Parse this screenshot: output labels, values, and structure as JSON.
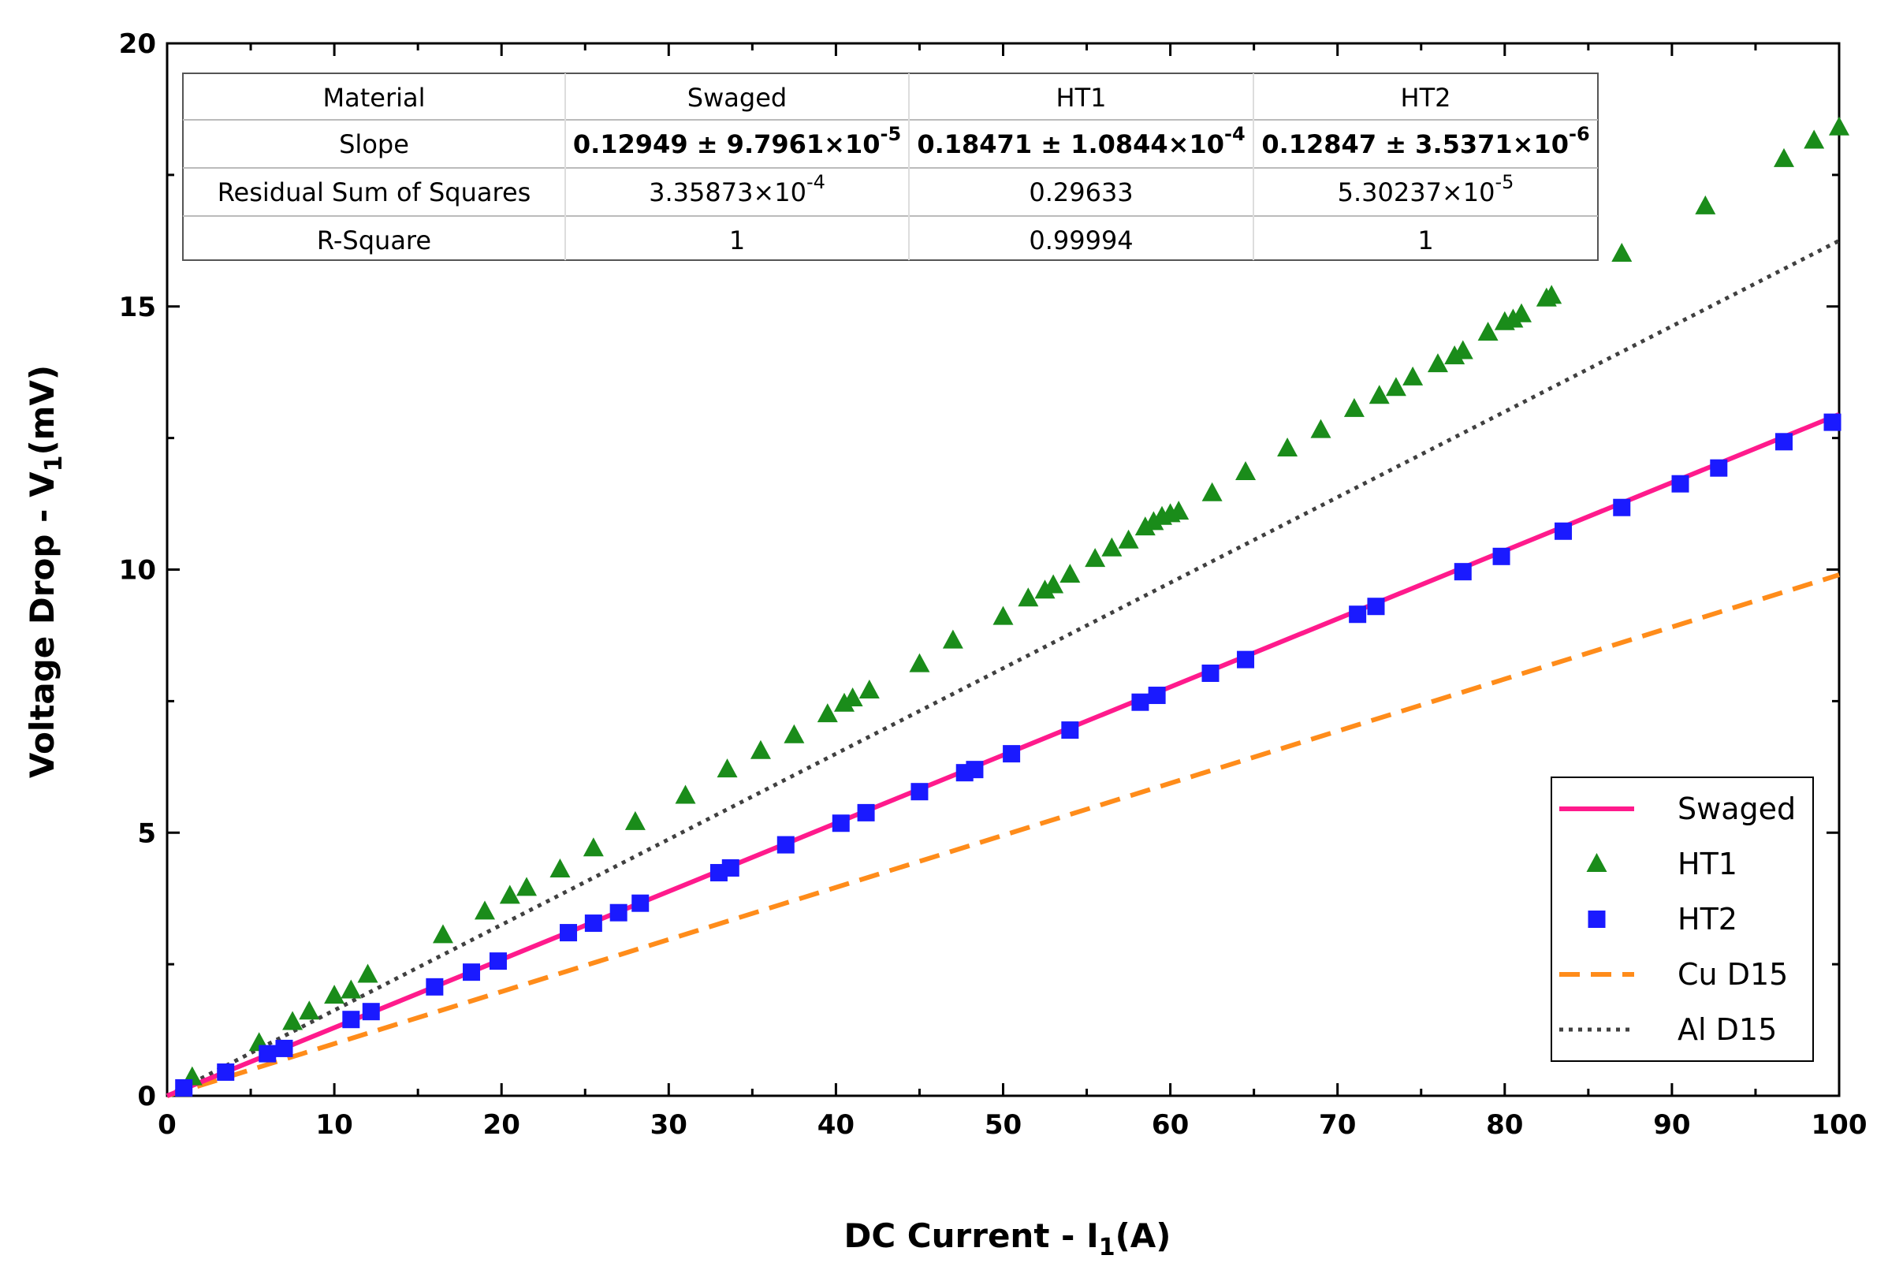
{
  "chart_data": {
    "type": "scatter",
    "xlabel": "DC Current - I",
    "xlabel_sub": "1",
    "xlabel_suffix": "(A)",
    "ylabel": "Voltage Drop - V",
    "ylabel_sub": "1",
    "ylabel_suffix": "(mV)",
    "xlim": [
      0,
      100
    ],
    "ylim": [
      0,
      20
    ],
    "x_ticks": [
      0,
      10,
      20,
      30,
      40,
      50,
      60,
      70,
      80,
      90,
      100
    ],
    "y_ticks": [
      0,
      5,
      10,
      15,
      20
    ],
    "legend_position": "bottom-right",
    "series": [
      {
        "name": "Swaged",
        "kind": "line",
        "style": "solid",
        "color": "#ff1a8c",
        "slope": 0.12949,
        "x": [
          0,
          100
        ]
      },
      {
        "name": "HT1",
        "kind": "marker",
        "marker": "triangle",
        "color": "#1a8c1a",
        "x": [
          1.5,
          5.5,
          7.5,
          8.5,
          10,
          11,
          12,
          16.5,
          19,
          20.5,
          21.5,
          23.5,
          25.5,
          28,
          31,
          33.5,
          35.5,
          37.5,
          39.5,
          40.5,
          41,
          42,
          45,
          47,
          50,
          51.5,
          52.5,
          53,
          54,
          55.5,
          56.5,
          57.5,
          58.5,
          59,
          59.5,
          60,
          60.5,
          62.5,
          64.5,
          67,
          69,
          71,
          72.5,
          73.5,
          74.5,
          76,
          77,
          77.5,
          79,
          80,
          80.5,
          81,
          82.5,
          82.8,
          87,
          92,
          96.7,
          98.5,
          100
        ],
        "y": [
          0.35,
          1.0,
          1.4,
          1.6,
          1.9,
          2.0,
          2.3,
          3.05,
          3.5,
          3.8,
          3.95,
          4.3,
          4.7,
          5.2,
          5.7,
          6.2,
          6.55,
          6.85,
          7.25,
          7.45,
          7.55,
          7.7,
          8.2,
          8.65,
          9.1,
          9.45,
          9.6,
          9.7,
          9.9,
          10.2,
          10.4,
          10.55,
          10.8,
          10.9,
          11.0,
          11.05,
          11.1,
          11.45,
          11.85,
          12.3,
          12.65,
          13.05,
          13.3,
          13.45,
          13.65,
          13.9,
          14.05,
          14.15,
          14.5,
          14.7,
          14.75,
          14.85,
          15.15,
          15.2,
          16.0,
          16.9,
          17.8,
          18.15,
          18.4
        ]
      },
      {
        "name": "HT2",
        "kind": "marker",
        "marker": "square",
        "color": "#1a1aff",
        "x": [
          1,
          3.5,
          6,
          7,
          11,
          12.2,
          16,
          18.2,
          19.8,
          24,
          25.5,
          27,
          28.3,
          33,
          33.7,
          37,
          40.3,
          41.8,
          45,
          47.7,
          48.3,
          50.5,
          54,
          58.2,
          59.2,
          62.4,
          64.5,
          71.2,
          72.3,
          77.5,
          79.8,
          83.5,
          87,
          90.5,
          92.8,
          96.7,
          99.6
        ],
        "y": [
          0.15,
          0.45,
          0.8,
          0.9,
          1.45,
          1.6,
          2.07,
          2.35,
          2.56,
          3.1,
          3.28,
          3.48,
          3.66,
          4.24,
          4.33,
          4.77,
          5.18,
          5.38,
          5.78,
          6.14,
          6.2,
          6.5,
          6.95,
          7.48,
          7.61,
          8.03,
          8.29,
          9.15,
          9.3,
          9.96,
          10.25,
          10.73,
          11.18,
          11.63,
          11.93,
          12.43,
          12.8
        ]
      },
      {
        "name": "Cu D15",
        "kind": "line",
        "style": "dashed",
        "color": "#ff8c1a",
        "slope": 0.099,
        "x": [
          0,
          100
        ]
      },
      {
        "name": "Al D15",
        "kind": "line",
        "style": "dotted",
        "color": "#404040",
        "slope": 0.1625,
        "x": [
          0,
          100
        ]
      }
    ],
    "table": {
      "headers": [
        "Material",
        "Swaged",
        "HT1",
        "HT2"
      ],
      "rows": [
        {
          "label": "Slope",
          "cells": [
            {
              "text": "0.12949 ± 9.7961×10",
              "exp": "-5",
              "color": "#ff0000",
              "bold": true
            },
            {
              "text": "0.18471 ± 1.0844×10",
              "exp": "-4",
              "color": "#1a8c1a",
              "bold": true
            },
            {
              "text": "0.12847 ± 3.5371×10",
              "exp": "-6",
              "color": "#1a1aff",
              "bold": true
            }
          ]
        },
        {
          "label": "Residual Sum of Squares",
          "cells": [
            {
              "text": "3.35873×10",
              "exp": "-4",
              "color": "#000000",
              "bold": false
            },
            {
              "text": "0.29633",
              "exp": "",
              "color": "#000000",
              "bold": false
            },
            {
              "text": "5.30237×10",
              "exp": "-5",
              "color": "#000000",
              "bold": false
            }
          ]
        },
        {
          "label": "R-Square",
          "cells": [
            {
              "text": "1",
              "exp": "",
              "color": "#000000",
              "bold": false
            },
            {
              "text": "0.99994",
              "exp": "",
              "color": "#000000",
              "bold": false
            },
            {
              "text": "1",
              "exp": "",
              "color": "#000000",
              "bold": false
            }
          ]
        }
      ]
    }
  }
}
